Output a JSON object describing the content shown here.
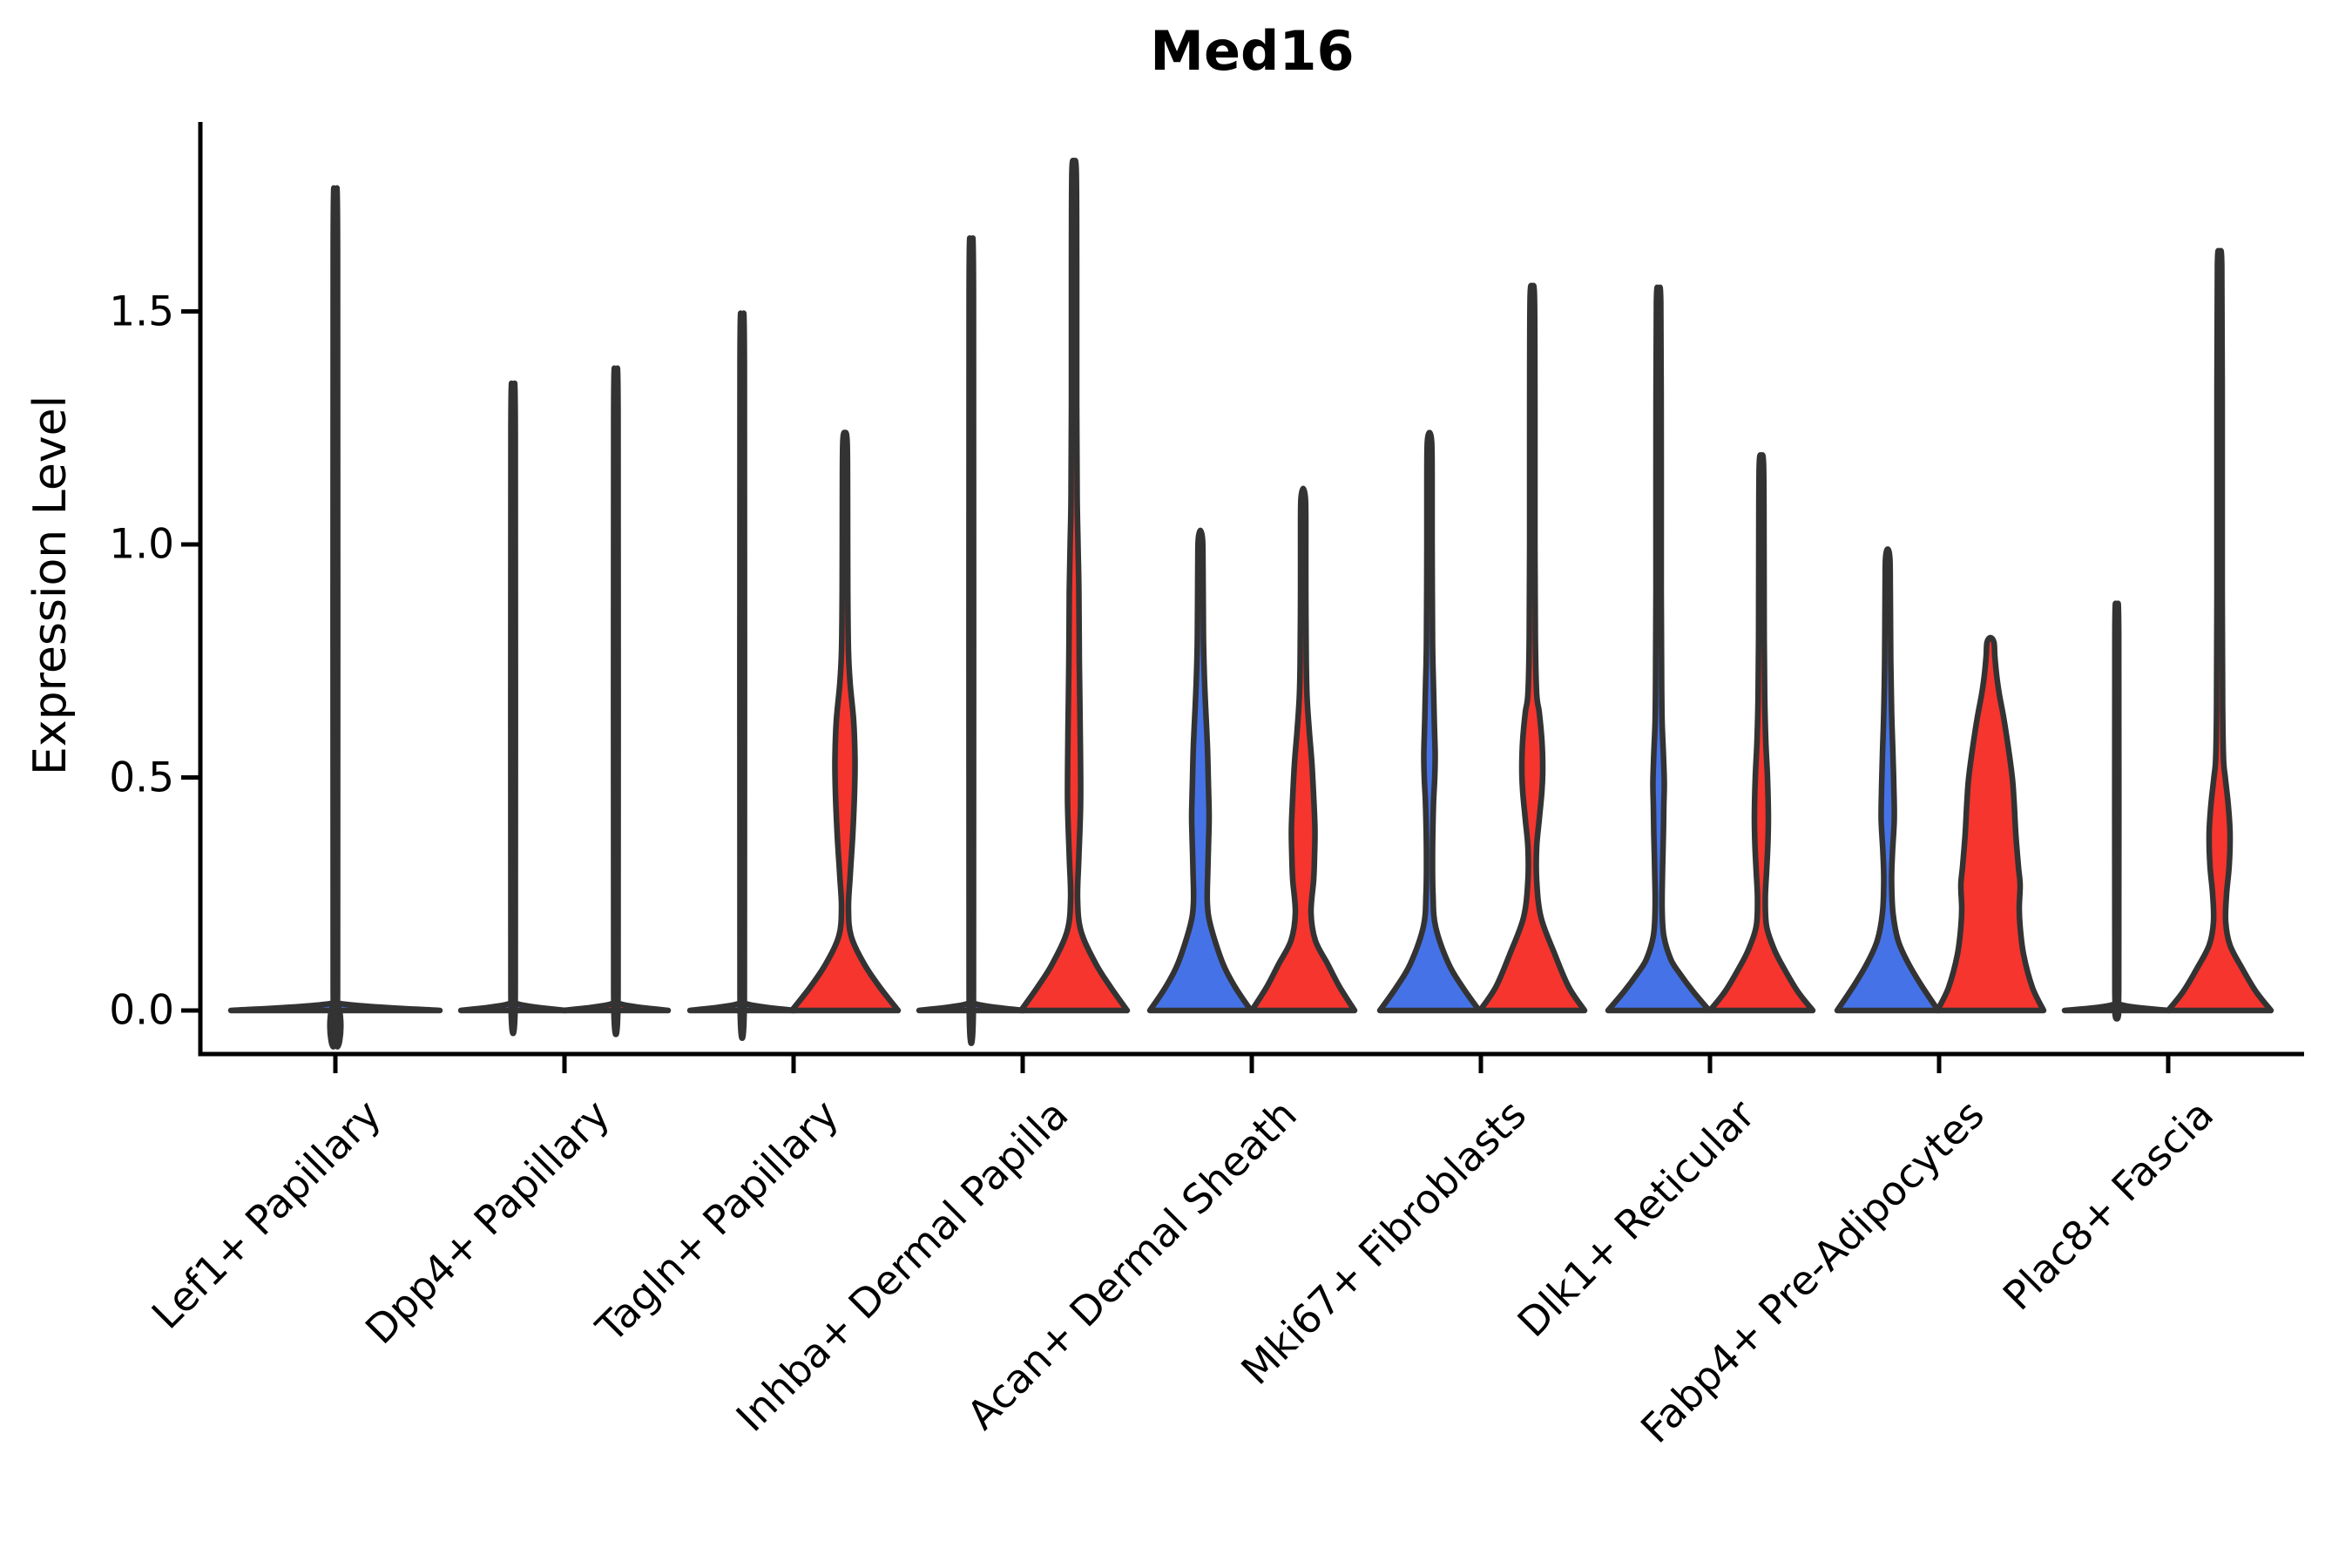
{
  "chart_data": {
    "type": "violin",
    "title": "Med16",
    "xlabel": "",
    "ylabel": "Expression Level",
    "ylim": [
      -0.09,
      1.9
    ],
    "grid": false,
    "legend": null,
    "colors": {
      "group1": "#4573e7",
      "group2": "#f5352e",
      "outline": "#333333",
      "axis": "#000000"
    },
    "yticks": [
      {
        "label": "0.0",
        "value": 0.0
      },
      {
        "label": "0.5",
        "value": 0.5
      },
      {
        "label": "1.0",
        "value": 1.0
      },
      {
        "label": "1.5",
        "value": 1.5
      }
    ],
    "categories": [
      {
        "label": "Lef1+ Papillary",
        "violins": [
          {
            "side": "single",
            "color": "group1",
            "max": 1.66,
            "profile": [
              [
                0,
                120
              ],
              [
                0.016,
                2.5
              ],
              [
                0.05,
                2.5
              ],
              [
                1.64,
                2.5
              ],
              [
                1.66,
                0
              ]
            ]
          }
        ]
      },
      {
        "label": "Dpp4+ Papillary",
        "violins": [
          {
            "side": "left",
            "color": "group1",
            "max": 1.27,
            "profile": [
              [
                0,
                60
              ],
              [
                0.016,
                2.5
              ],
              [
                0.05,
                2.5
              ],
              [
                1.25,
                2.5
              ],
              [
                1.27,
                0
              ]
            ]
          },
          {
            "side": "right",
            "color": "group2",
            "max": 1.3,
            "profile": [
              [
                0,
                60
              ],
              [
                0.016,
                2.5
              ],
              [
                0.05,
                2.5
              ],
              [
                1.28,
                2.5
              ],
              [
                1.3,
                0
              ]
            ]
          }
        ]
      },
      {
        "label": "Tagln+ Papillary",
        "violins": [
          {
            "side": "left",
            "color": "group1",
            "max": 1.41,
            "profile": [
              [
                0,
                60
              ],
              [
                0.016,
                2.5
              ],
              [
                0.05,
                2.5
              ],
              [
                1.39,
                2.5
              ],
              [
                1.41,
                0
              ]
            ]
          },
          {
            "side": "right",
            "color": "group2",
            "max": 1.24,
            "profile": [
              [
                0,
                61
              ],
              [
                0.05,
                40
              ],
              [
                0.1,
                22
              ],
              [
                0.16,
                7
              ],
              [
                0.22,
                4
              ],
              [
                0.29,
                6
              ],
              [
                0.38,
                9
              ],
              [
                0.47,
                11
              ],
              [
                0.54,
                11.5
              ],
              [
                0.62,
                10
              ],
              [
                0.7,
                6
              ],
              [
                0.77,
                4
              ],
              [
                0.9,
                3.2
              ],
              [
                1.1,
                3
              ],
              [
                1.22,
                2.5
              ],
              [
                1.24,
                0
              ]
            ]
          }
        ]
      },
      {
        "label": "Inhba+ Dermal Papilla",
        "violins": [
          {
            "side": "left",
            "color": "group1",
            "max": 1.56,
            "profile": [
              [
                0,
                60
              ],
              [
                0.016,
                2.5
              ],
              [
                0.05,
                2.5
              ],
              [
                1.54,
                2.5
              ],
              [
                1.56,
                0
              ]
            ]
          },
          {
            "side": "right",
            "color": "group2",
            "max": 1.82,
            "profile": [
              [
                0,
                61
              ],
              [
                0.05,
                42
              ],
              [
                0.1,
                25
              ],
              [
                0.17,
                8
              ],
              [
                0.24,
                4
              ],
              [
                0.33,
                5.5
              ],
              [
                0.45,
                7.5
              ],
              [
                0.6,
                7
              ],
              [
                0.75,
                6
              ],
              [
                0.9,
                5.5
              ],
              [
                1.0,
                4.5
              ],
              [
                1.1,
                3.5
              ],
              [
                1.3,
                3
              ],
              [
                1.6,
                3
              ],
              [
                1.8,
                2.5
              ],
              [
                1.82,
                0
              ]
            ]
          }
        ]
      },
      {
        "label": "Acan+ Dermal Sheath",
        "violins": [
          {
            "side": "left",
            "color": "group1",
            "max": 1.03,
            "profile": [
              [
                0,
                58
              ],
              [
                0.05,
                40
              ],
              [
                0.1,
                26
              ],
              [
                0.18,
                12
              ],
              [
                0.23,
                8
              ],
              [
                0.3,
                8.5
              ],
              [
                0.37,
                9.5
              ],
              [
                0.42,
                10
              ],
              [
                0.5,
                9
              ],
              [
                0.57,
                8
              ],
              [
                0.65,
                6
              ],
              [
                0.72,
                4.5
              ],
              [
                0.8,
                3.5
              ],
              [
                0.95,
                3
              ],
              [
                1.01,
                2.5
              ],
              [
                1.03,
                0
              ]
            ]
          },
          {
            "side": "right",
            "color": "group2",
            "max": 1.12,
            "profile": [
              [
                0,
                59
              ],
              [
                0.05,
                42
              ],
              [
                0.1,
                28
              ],
              [
                0.15,
                14
              ],
              [
                0.21,
                9
              ],
              [
                0.28,
                12
              ],
              [
                0.33,
                13
              ],
              [
                0.39,
                13.5
              ],
              [
                0.46,
                12
              ],
              [
                0.53,
                10
              ],
              [
                0.6,
                7
              ],
              [
                0.67,
                4.5
              ],
              [
                0.75,
                3.5
              ],
              [
                0.9,
                3
              ],
              [
                1.05,
                3
              ],
              [
                1.1,
                2.5
              ],
              [
                1.12,
                0
              ]
            ]
          }
        ]
      },
      {
        "label": "Mki67+ Fibroblasts",
        "violins": [
          {
            "side": "left",
            "color": "group1",
            "max": 1.24,
            "profile": [
              [
                0,
                57
              ],
              [
                0.05,
                38
              ],
              [
                0.1,
                22
              ],
              [
                0.18,
                7
              ],
              [
                0.25,
                4
              ],
              [
                0.34,
                3.5
              ],
              [
                0.44,
                4.5
              ],
              [
                0.5,
                6
              ],
              [
                0.55,
                6.5
              ],
              [
                0.62,
                5.5
              ],
              [
                0.7,
                4.5
              ],
              [
                0.79,
                3.5
              ],
              [
                1.0,
                3
              ],
              [
                1.15,
                3
              ],
              [
                1.22,
                2.5
              ],
              [
                1.24,
                0
              ]
            ]
          },
          {
            "side": "right",
            "color": "group2",
            "max": 1.55,
            "profile": [
              [
                0,
                60
              ],
              [
                0.05,
                42
              ],
              [
                0.12,
                26
              ],
              [
                0.2,
                10
              ],
              [
                0.28,
                5
              ],
              [
                0.35,
                5
              ],
              [
                0.41,
                8
              ],
              [
                0.47,
                11
              ],
              [
                0.52,
                12
              ],
              [
                0.58,
                11
              ],
              [
                0.64,
                8
              ],
              [
                0.68,
                5
              ],
              [
                0.8,
                3.5
              ],
              [
                1.0,
                3
              ],
              [
                1.3,
                3
              ],
              [
                1.53,
                2.5
              ],
              [
                1.55,
                0
              ]
            ]
          }
        ]
      },
      {
        "label": "Dlk1+ Reticular",
        "violins": [
          {
            "side": "left",
            "color": "group1",
            "max": 1.54,
            "profile": [
              [
                0,
                58
              ],
              [
                0.04,
                40
              ],
              [
                0.08,
                24
              ],
              [
                0.11,
                14
              ],
              [
                0.16,
                6
              ],
              [
                0.22,
                4
              ],
              [
                0.3,
                4.5
              ],
              [
                0.38,
                5.5
              ],
              [
                0.44,
                6
              ],
              [
                0.49,
                6.5
              ],
              [
                0.55,
                5.5
              ],
              [
                0.62,
                4
              ],
              [
                0.7,
                3.5
              ],
              [
                0.9,
                3
              ],
              [
                1.2,
                3
              ],
              [
                1.52,
                2.5
              ],
              [
                1.54,
                0
              ]
            ]
          },
          {
            "side": "right",
            "color": "group2",
            "max": 1.19,
            "profile": [
              [
                0,
                59
              ],
              [
                0.04,
                42
              ],
              [
                0.09,
                26
              ],
              [
                0.13,
                15
              ],
              [
                0.18,
                6
              ],
              [
                0.24,
                4.5
              ],
              [
                0.3,
                6
              ],
              [
                0.36,
                7.5
              ],
              [
                0.42,
                8
              ],
              [
                0.5,
                7
              ],
              [
                0.58,
                5
              ],
              [
                0.67,
                3.8
              ],
              [
                0.8,
                3.2
              ],
              [
                1.0,
                3
              ],
              [
                1.17,
                2.5
              ],
              [
                1.19,
                0
              ]
            ]
          }
        ]
      },
      {
        "label": "Fabp4+ Pre-Adipocytes",
        "violins": [
          {
            "side": "left",
            "color": "group1",
            "max": 0.99,
            "profile": [
              [
                0,
                58
              ],
              [
                0.05,
                40
              ],
              [
                0.1,
                24
              ],
              [
                0.15,
                12
              ],
              [
                0.21,
                6
              ],
              [
                0.28,
                4.5
              ],
              [
                0.34,
                5.5
              ],
              [
                0.41,
                7.5
              ],
              [
                0.48,
                7
              ],
              [
                0.55,
                6
              ],
              [
                0.64,
                4.5
              ],
              [
                0.75,
                3.5
              ],
              [
                0.9,
                3
              ],
              [
                0.97,
                2.5
              ],
              [
                0.99,
                0
              ]
            ]
          },
          {
            "side": "right",
            "color": "group2",
            "max": 0.8,
            "profile": [
              [
                0,
                61
              ],
              [
                0.05,
                48
              ],
              [
                0.12,
                38
              ],
              [
                0.18,
                34
              ],
              [
                0.22,
                33
              ],
              [
                0.27,
                34
              ],
              [
                0.31,
                32
              ],
              [
                0.38,
                29
              ],
              [
                0.45,
                27
              ],
              [
                0.5,
                25
              ],
              [
                0.57,
                20
              ],
              [
                0.63,
                15
              ],
              [
                0.68,
                10
              ],
              [
                0.72,
                7
              ],
              [
                0.76,
                5
              ],
              [
                0.79,
                4
              ],
              [
                0.8,
                0
              ]
            ]
          }
        ]
      },
      {
        "label": "Plac8+ Fascia",
        "violins": [
          {
            "side": "left",
            "color": "group1",
            "max": 0.83,
            "profile": [
              [
                0,
                60
              ],
              [
                0.014,
                2.2
              ],
              [
                0.05,
                2.2
              ],
              [
                0.81,
                2.2
              ],
              [
                0.83,
                0
              ]
            ]
          },
          {
            "side": "right",
            "color": "group2",
            "max": 1.62,
            "profile": [
              [
                0,
                59
              ],
              [
                0.04,
                42
              ],
              [
                0.09,
                26
              ],
              [
                0.14,
                12
              ],
              [
                0.19,
                7
              ],
              [
                0.25,
                8
              ],
              [
                0.31,
                11
              ],
              [
                0.38,
                12
              ],
              [
                0.44,
                10
              ],
              [
                0.5,
                6.5
              ],
              [
                0.54,
                4.5
              ],
              [
                0.65,
                3.5
              ],
              [
                0.9,
                3
              ],
              [
                1.3,
                3
              ],
              [
                1.6,
                2.5
              ],
              [
                1.62,
                0
              ]
            ]
          }
        ]
      }
    ]
  }
}
